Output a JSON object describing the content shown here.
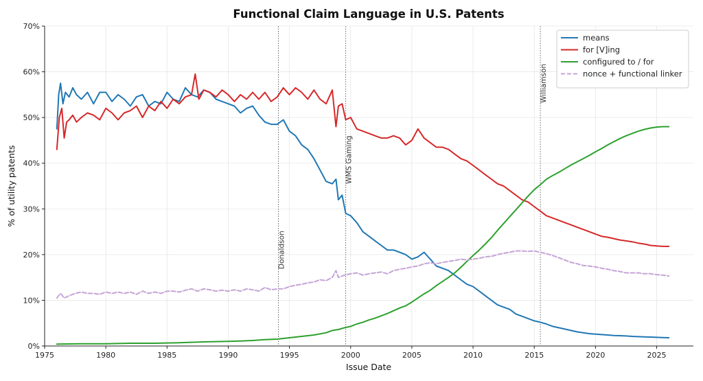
{
  "chart_data": {
    "type": "line",
    "title": "Functional Claim Language in U.S. Patents",
    "xlabel": "Issue Date",
    "ylabel": "% of utility patents",
    "xlim": [
      1975,
      2028
    ],
    "ylim": [
      0,
      70
    ],
    "x_ticks": [
      1975,
      1980,
      1985,
      1990,
      1995,
      2000,
      2005,
      2010,
      2015,
      2020,
      2025
    ],
    "x_tick_labels": [
      "1975",
      "1980",
      "1985",
      "1990",
      "1995",
      "2000",
      "2005",
      "2010",
      "2015",
      "2020",
      "2025"
    ],
    "y_ticks": [
      0,
      10,
      20,
      30,
      40,
      50,
      60,
      70
    ],
    "y_tick_labels": [
      "0%",
      "10%",
      "20%",
      "30%",
      "40%",
      "50%",
      "60%",
      "70%"
    ],
    "grid": true,
    "legend_position": "top-right",
    "events": [
      {
        "x": 1994.1,
        "label": "Donaldson"
      },
      {
        "x": 1999.6,
        "label": "WMS Gaming"
      },
      {
        "x": 2015.5,
        "label": "Williamson"
      }
    ],
    "series": [
      {
        "name": "means",
        "color": "#1f77b4",
        "style": "solid",
        "x": [
          1976.0,
          1976.15,
          1976.3,
          1976.5,
          1976.7,
          1977.0,
          1977.3,
          1977.6,
          1978.0,
          1978.5,
          1979.0,
          1979.5,
          1980.0,
          1980.5,
          1981.0,
          1981.5,
          1982.0,
          1982.5,
          1983.0,
          1983.5,
          1984.0,
          1984.5,
          1985.0,
          1985.5,
          1986.0,
          1986.5,
          1987.0,
          1987.5,
          1988.0,
          1988.5,
          1989.0,
          1989.5,
          1990.0,
          1990.5,
          1991.0,
          1991.5,
          1992.0,
          1992.5,
          1993.0,
          1993.5,
          1994.0,
          1994.5,
          1995.0,
          1995.5,
          1996.0,
          1996.5,
          1997.0,
          1997.5,
          1998.0,
          1998.5,
          1998.8,
          1999.0,
          1999.3,
          1999.6,
          2000.0,
          2000.5,
          2001.0,
          2001.5,
          2002.0,
          2002.5,
          2003.0,
          2003.5,
          2004.0,
          2004.5,
          2005.0,
          2005.5,
          2006.0,
          2006.5,
          2007.0,
          2007.5,
          2008.0,
          2008.5,
          2009.0,
          2009.5,
          2010.0,
          2010.5,
          2011.0,
          2011.5,
          2012.0,
          2012.5,
          2013.0,
          2013.5,
          2014.0,
          2014.5,
          2015.0,
          2015.5,
          2016.0,
          2016.5,
          2017.0,
          2017.5,
          2018.0,
          2018.5,
          2019.0,
          2019.5,
          2020.0,
          2020.5,
          2021.0,
          2021.5,
          2022.0,
          2022.5,
          2023.0,
          2023.5,
          2024.0,
          2024.5,
          2025.0,
          2025.5,
          2026.0
        ],
        "y": [
          47.5,
          55.0,
          57.5,
          53.0,
          55.5,
          54.5,
          56.5,
          55.0,
          54.0,
          55.5,
          53.0,
          55.5,
          55.5,
          53.5,
          55.0,
          54.0,
          52.5,
          54.5,
          55.0,
          52.5,
          53.5,
          53.0,
          55.5,
          54.0,
          53.5,
          56.5,
          55.0,
          54.5,
          56.0,
          55.5,
          54.0,
          53.5,
          53.0,
          52.5,
          51.0,
          52.0,
          52.5,
          50.5,
          49.0,
          48.5,
          48.5,
          49.5,
          47.0,
          46.0,
          44.0,
          43.0,
          41.0,
          38.5,
          36.0,
          35.5,
          36.5,
          32.0,
          33.0,
          29.0,
          28.5,
          27.0,
          25.0,
          24.0,
          23.0,
          22.0,
          21.0,
          21.0,
          20.5,
          20.0,
          19.0,
          19.5,
          20.5,
          19.0,
          17.5,
          17.0,
          16.5,
          15.5,
          14.5,
          13.5,
          13.0,
          12.0,
          11.0,
          10.0,
          9.0,
          8.5,
          8.0,
          7.0,
          6.5,
          6.0,
          5.5,
          5.2,
          4.8,
          4.3,
          4.0,
          3.7,
          3.4,
          3.1,
          2.9,
          2.7,
          2.6,
          2.5,
          2.4,
          2.3,
          2.25,
          2.2,
          2.1,
          2.05,
          2.0,
          1.95,
          1.9,
          1.85,
          1.8
        ]
      },
      {
        "name": "for [V]ing",
        "color": "#d62728",
        "style": "solid",
        "x": [
          1976.0,
          1976.2,
          1976.4,
          1976.6,
          1976.8,
          1977.0,
          1977.3,
          1977.6,
          1978.0,
          1978.5,
          1979.0,
          1979.5,
          1980.0,
          1980.5,
          1981.0,
          1981.5,
          1982.0,
          1982.5,
          1983.0,
          1983.5,
          1984.0,
          1984.5,
          1985.0,
          1985.5,
          1986.0,
          1986.5,
          1987.0,
          1987.3,
          1987.6,
          1988.0,
          1988.5,
          1989.0,
          1989.5,
          1990.0,
          1990.5,
          1991.0,
          1991.5,
          1992.0,
          1992.5,
          1993.0,
          1993.5,
          1994.0,
          1994.5,
          1995.0,
          1995.5,
          1996.0,
          1996.5,
          1997.0,
          1997.5,
          1998.0,
          1998.5,
          1998.8,
          1999.0,
          1999.3,
          1999.6,
          2000.0,
          2000.5,
          2001.0,
          2001.5,
          2002.0,
          2002.5,
          2003.0,
          2003.5,
          2004.0,
          2004.5,
          2005.0,
          2005.5,
          2006.0,
          2006.5,
          2007.0,
          2007.5,
          2008.0,
          2008.5,
          2009.0,
          2009.5,
          2010.0,
          2010.5,
          2011.0,
          2011.5,
          2012.0,
          2012.5,
          2013.0,
          2013.5,
          2014.0,
          2014.5,
          2015.0,
          2015.5,
          2016.0,
          2016.5,
          2017.0,
          2017.5,
          2018.0,
          2018.5,
          2019.0,
          2019.5,
          2020.0,
          2020.5,
          2021.0,
          2021.5,
          2022.0,
          2022.5,
          2023.0,
          2023.5,
          2024.0,
          2024.5,
          2025.0,
          2025.5,
          2026.0
        ],
        "y": [
          43.0,
          50.0,
          52.0,
          45.5,
          49.0,
          49.5,
          50.5,
          49.0,
          50.0,
          51.0,
          50.5,
          49.5,
          52.0,
          51.0,
          49.5,
          51.0,
          51.5,
          52.5,
          50.0,
          52.5,
          51.5,
          53.5,
          52.0,
          54.0,
          53.0,
          54.5,
          55.0,
          59.5,
          54.0,
          56.0,
          55.5,
          54.5,
          56.0,
          55.0,
          53.5,
          55.0,
          54.0,
          55.5,
          54.0,
          55.5,
          53.5,
          54.5,
          56.5,
          55.0,
          56.5,
          55.5,
          54.0,
          56.0,
          54.0,
          53.0,
          56.0,
          48.0,
          52.5,
          53.0,
          49.5,
          50.0,
          47.5,
          47.0,
          46.5,
          46.0,
          45.5,
          45.5,
          46.0,
          45.5,
          44.0,
          45.0,
          47.5,
          45.5,
          44.5,
          43.5,
          43.5,
          43.0,
          42.0,
          41.0,
          40.5,
          39.5,
          38.5,
          37.5,
          36.5,
          35.5,
          35.0,
          34.0,
          33.0,
          32.0,
          31.5,
          30.5,
          29.5,
          28.5,
          28.0,
          27.5,
          27.0,
          26.5,
          26.0,
          25.5,
          25.0,
          24.5,
          24.0,
          23.8,
          23.5,
          23.2,
          23.0,
          22.8,
          22.5,
          22.3,
          22.0,
          21.9,
          21.8,
          21.8
        ]
      },
      {
        "name": "configured to / for",
        "color": "#2ca02c",
        "style": "solid",
        "x": [
          1976.0,
          1978.0,
          1980.0,
          1982.0,
          1984.0,
          1986.0,
          1988.0,
          1990.0,
          1991.0,
          1992.0,
          1993.0,
          1994.0,
          1995.0,
          1996.0,
          1997.0,
          1998.0,
          1998.5,
          1999.0,
          1999.5,
          2000.0,
          2000.5,
          2001.0,
          2001.5,
          2002.0,
          2002.5,
          2003.0,
          2003.5,
          2004.0,
          2004.5,
          2005.0,
          2005.5,
          2006.0,
          2006.5,
          2007.0,
          2007.5,
          2008.0,
          2008.5,
          2009.0,
          2009.5,
          2010.0,
          2010.5,
          2011.0,
          2011.5,
          2012.0,
          2012.5,
          2013.0,
          2013.5,
          2014.0,
          2014.5,
          2015.0,
          2015.5,
          2016.0,
          2016.5,
          2017.0,
          2017.5,
          2018.0,
          2018.5,
          2019.0,
          2019.5,
          2020.0,
          2020.5,
          2021.0,
          2021.5,
          2022.0,
          2022.5,
          2023.0,
          2023.5,
          2024.0,
          2024.5,
          2025.0,
          2025.5,
          2026.0
        ],
        "y": [
          0.4,
          0.5,
          0.5,
          0.6,
          0.6,
          0.7,
          0.9,
          1.0,
          1.1,
          1.2,
          1.4,
          1.5,
          1.8,
          2.1,
          2.4,
          2.9,
          3.4,
          3.6,
          4.0,
          4.3,
          4.8,
          5.2,
          5.7,
          6.1,
          6.6,
          7.1,
          7.7,
          8.3,
          8.8,
          9.6,
          10.5,
          11.4,
          12.2,
          13.2,
          14.1,
          15.0,
          16.0,
          17.2,
          18.5,
          19.8,
          21.0,
          22.3,
          23.7,
          25.3,
          26.8,
          28.3,
          29.8,
          31.3,
          32.8,
          34.2,
          35.3,
          36.5,
          37.3,
          38.0,
          38.8,
          39.6,
          40.3,
          41.0,
          41.7,
          42.5,
          43.2,
          44.0,
          44.7,
          45.4,
          46.0,
          46.5,
          47.0,
          47.4,
          47.7,
          47.9,
          48.0,
          48.0
        ]
      },
      {
        "name": "nonce + functional linker",
        "color": "#c5a3d6",
        "style": "dashed",
        "x": [
          1976.0,
          1976.3,
          1976.6,
          1977.0,
          1977.5,
          1978.0,
          1978.5,
          1979.0,
          1979.5,
          1980.0,
          1980.5,
          1981.0,
          1981.5,
          1982.0,
          1982.5,
          1983.0,
          1983.5,
          1984.0,
          1984.5,
          1985.0,
          1985.5,
          1986.0,
          1986.5,
          1987.0,
          1987.5,
          1988.0,
          1988.5,
          1989.0,
          1989.5,
          1990.0,
          1990.5,
          1991.0,
          1991.5,
          1992.0,
          1992.5,
          1993.0,
          1993.5,
          1994.0,
          1994.5,
          1995.0,
          1995.5,
          1996.0,
          1996.5,
          1997.0,
          1997.5,
          1998.0,
          1998.5,
          1998.8,
          1999.0,
          1999.5,
          2000.0,
          2000.5,
          2001.0,
          2001.5,
          2002.0,
          2002.5,
          2003.0,
          2003.5,
          2004.0,
          2004.5,
          2005.0,
          2005.5,
          2006.0,
          2006.5,
          2007.0,
          2007.5,
          2008.0,
          2008.5,
          2009.0,
          2009.5,
          2010.0,
          2010.5,
          2011.0,
          2011.5,
          2012.0,
          2012.5,
          2013.0,
          2013.5,
          2014.0,
          2014.5,
          2015.0,
          2015.5,
          2016.0,
          2016.5,
          2017.0,
          2017.5,
          2018.0,
          2018.5,
          2019.0,
          2019.5,
          2020.0,
          2020.5,
          2021.0,
          2021.5,
          2022.0,
          2022.5,
          2023.0,
          2023.5,
          2024.0,
          2024.5,
          2025.0,
          2025.5,
          2026.0
        ],
        "y": [
          10.5,
          11.5,
          10.5,
          11.0,
          11.5,
          11.8,
          11.5,
          11.5,
          11.3,
          11.8,
          11.5,
          11.8,
          11.5,
          11.8,
          11.3,
          12.0,
          11.5,
          11.8,
          11.5,
          12.0,
          12.0,
          11.8,
          12.2,
          12.5,
          12.0,
          12.5,
          12.3,
          12.0,
          12.2,
          12.0,
          12.3,
          12.0,
          12.5,
          12.3,
          12.0,
          12.8,
          12.3,
          12.5,
          12.5,
          13.0,
          13.3,
          13.5,
          13.8,
          14.0,
          14.5,
          14.3,
          15.0,
          16.5,
          15.0,
          15.5,
          15.8,
          16.0,
          15.5,
          15.8,
          16.0,
          16.2,
          15.8,
          16.5,
          16.8,
          17.0,
          17.3,
          17.5,
          18.0,
          18.2,
          18.0,
          18.3,
          18.5,
          18.7,
          19.0,
          18.8,
          19.0,
          19.2,
          19.5,
          19.6,
          20.0,
          20.3,
          20.5,
          20.8,
          20.8,
          20.7,
          20.8,
          20.5,
          20.2,
          19.8,
          19.3,
          18.8,
          18.3,
          18.0,
          17.6,
          17.5,
          17.3,
          17.0,
          16.8,
          16.5,
          16.3,
          16.0,
          16.0,
          16.0,
          15.8,
          15.8,
          15.6,
          15.5,
          15.3
        ]
      }
    ]
  }
}
